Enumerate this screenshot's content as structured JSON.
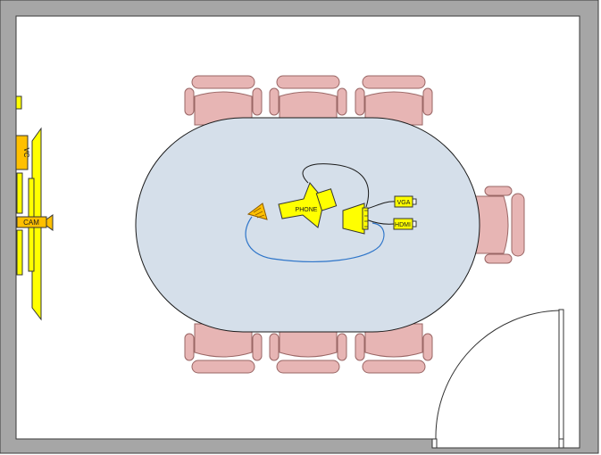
{
  "labels": {
    "vc": "VC",
    "cam": "CAM",
    "phone": "PHONE",
    "vga": "VGA",
    "hdmi": "HDMI"
  },
  "colors": {
    "wall": "#a6a6a6",
    "wall_outline": "#3a3a3a",
    "floor": "#ffffff",
    "table": "#d5dfea",
    "chair": "#e7b5b4",
    "chair_outline": "#9a6665",
    "equipment": "#ffff00",
    "equipment_dark": "#ffc000",
    "cable_blue": "#2e75c9",
    "cable_black": "#1a1a1a"
  }
}
